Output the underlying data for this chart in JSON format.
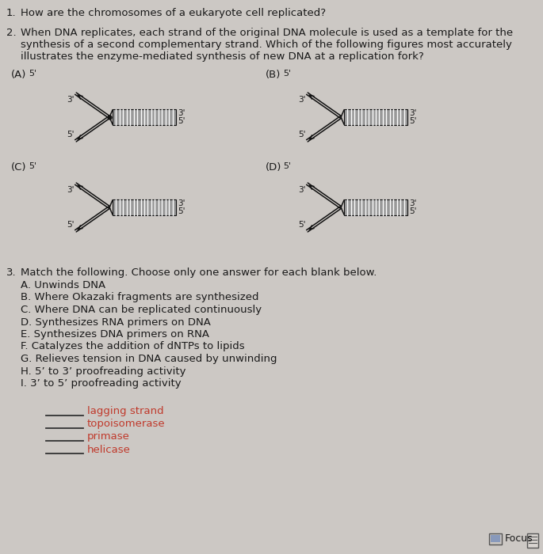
{
  "bg_color": "#ccc8c4",
  "text_color": "#1a1a1a",
  "q1_number": "1.",
  "q1_text": "How are the chromosomes of a eukaryote cell replicated?",
  "q2_number": "2.",
  "q2_line1": "When DNA replicates, each strand of the original DNA molecule is used as a template for the",
  "q2_line2": "synthesis of a second complementary strand. Which of the following figures most accurately",
  "q2_line3": "illustrates the enzyme-mediated synthesis of new DNA at a replication fork?",
  "label_A": "(A)",
  "label_B": "(B)",
  "label_C": "(C)",
  "label_D": "(D)",
  "q3_number": "3.",
  "q3_intro": "Match the following. Choose only one answer for each blank below.",
  "q3_A": "A. Unwinds DNA",
  "q3_B": "B. Where Okazaki fragments are synthesized",
  "q3_C": "C. Where DNA can be replicated continuously",
  "q3_D": "D. Synthesizes RNA primers on DNA",
  "q3_E": "E. Synthesizes DNA primers on RNA",
  "q3_F": "F. Catalyzes the addition of dNTPs to lipids",
  "q3_G": "G. Relieves tension in DNA caused by unwinding",
  "q3_H": "H. 5’ to 3’ proofreading activity",
  "q3_I": "I. 3’ to 5’ proofreading activity",
  "blank1": "lagging strand",
  "blank2": "topoisomerase",
  "blank3": "primase",
  "blank4": "helicase",
  "focus_label": "Focus",
  "fork_color": "#111111",
  "dna_fill": "#999999",
  "stripe_color": "#ffffff",
  "blank_text_color": "#c0392b",
  "line_color": "#555555"
}
